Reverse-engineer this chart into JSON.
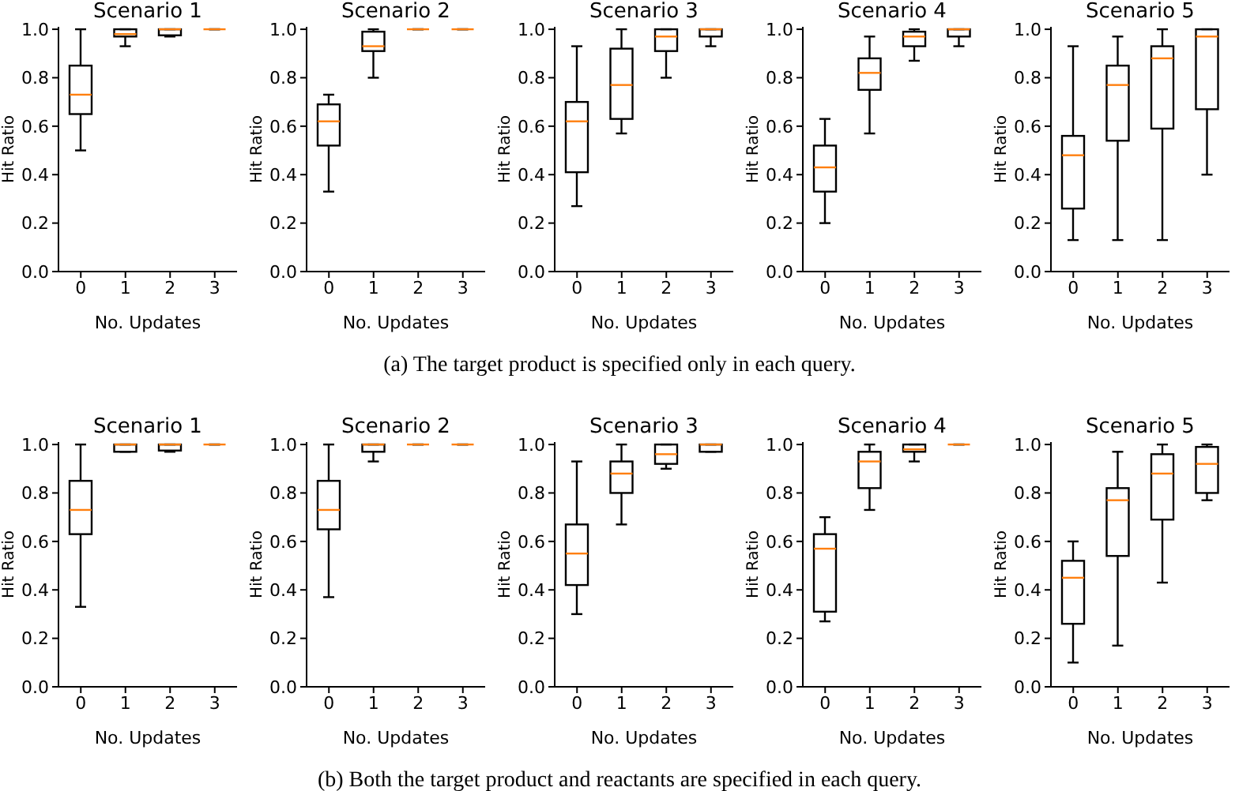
{
  "chart_data": [
    {
      "type": "box",
      "title": "Scenario 1",
      "xlabel": "No. Updates",
      "ylabel": "Hit Ratio",
      "categories": [
        "0",
        "1",
        "2",
        "3"
      ],
      "ylim": [
        0,
        1.01
      ],
      "yticks": [
        {
          "value": 0,
          "label": "0.0"
        },
        {
          "value": 0.2,
          "label": "0.2"
        },
        {
          "value": 0.4,
          "label": "0.4"
        },
        {
          "value": 0.6,
          "label": "0.6"
        },
        {
          "value": 0.8,
          "label": "0.8"
        },
        {
          "value": 1,
          "label": "1.0"
        }
      ],
      "color": "#000000",
      "annotations": [
        "(a) The target product is specified only in each query."
      ],
      "boxes": [
        {
          "low": 0.5,
          "q1": 0.65,
          "median": 0.73,
          "q3": 0.85,
          "high": 1.0
        },
        {
          "low": 0.93,
          "q1": 0.97,
          "median": 0.98,
          "q3": 1.0,
          "high": 1.0
        },
        {
          "low": 0.97,
          "q1": 0.975,
          "median": 1.0,
          "q3": 1.0,
          "high": 1.0
        },
        {
          "low": 1.0,
          "q1": 1.0,
          "median": 1.0,
          "q3": 1.0,
          "high": 1.0
        }
      ]
    },
    {
      "type": "box",
      "title": "Scenario 2",
      "xlabel": "No. Updates",
      "ylabel": "Hit Ratio",
      "categories": [
        "0",
        "1",
        "2",
        "3"
      ],
      "ylim": [
        0,
        1.01
      ],
      "yticks": [
        {
          "value": 0,
          "label": "0.0"
        },
        {
          "value": 0.2,
          "label": "0.2"
        },
        {
          "value": 0.4,
          "label": "0.4"
        },
        {
          "value": 0.6,
          "label": "0.6"
        },
        {
          "value": 0.8,
          "label": "0.8"
        },
        {
          "value": 1,
          "label": "1.0"
        }
      ],
      "color": "#000000",
      "boxes": [
        {
          "low": 0.33,
          "q1": 0.52,
          "median": 0.62,
          "q3": 0.69,
          "high": 0.73
        },
        {
          "low": 0.8,
          "q1": 0.91,
          "median": 0.93,
          "q3": 0.99,
          "high": 1.0
        },
        {
          "low": 1.0,
          "q1": 1.0,
          "median": 1.0,
          "q3": 1.0,
          "high": 1.0
        },
        {
          "low": 1.0,
          "q1": 1.0,
          "median": 1.0,
          "q3": 1.0,
          "high": 1.0
        }
      ]
    },
    {
      "type": "box",
      "title": "Scenario 3",
      "xlabel": "No. Updates",
      "ylabel": "Hit Ratio",
      "categories": [
        "0",
        "1",
        "2",
        "3"
      ],
      "ylim": [
        0,
        1.01
      ],
      "yticks": [
        {
          "value": 0,
          "label": "0.0"
        },
        {
          "value": 0.2,
          "label": "0.2"
        },
        {
          "value": 0.4,
          "label": "0.4"
        },
        {
          "value": 0.6,
          "label": "0.6"
        },
        {
          "value": 0.8,
          "label": "0.8"
        },
        {
          "value": 1,
          "label": "1.0"
        }
      ],
      "color": "#000000",
      "boxes": [
        {
          "low": 0.27,
          "q1": 0.41,
          "median": 0.62,
          "q3": 0.7,
          "high": 0.93
        },
        {
          "low": 0.57,
          "q1": 0.63,
          "median": 0.77,
          "q3": 0.92,
          "high": 1.0
        },
        {
          "low": 0.8,
          "q1": 0.91,
          "median": 0.97,
          "q3": 1.0,
          "high": 1.0
        },
        {
          "low": 0.93,
          "q1": 0.97,
          "median": 1.0,
          "q3": 1.0,
          "high": 1.0
        }
      ]
    },
    {
      "type": "box",
      "title": "Scenario 4",
      "xlabel": "No. Updates",
      "ylabel": "Hit Ratio",
      "categories": [
        "0",
        "1",
        "2",
        "3"
      ],
      "ylim": [
        0,
        1.01
      ],
      "yticks": [
        {
          "value": 0,
          "label": "0.0"
        },
        {
          "value": 0.2,
          "label": "0.2"
        },
        {
          "value": 0.4,
          "label": "0.4"
        },
        {
          "value": 0.6,
          "label": "0.6"
        },
        {
          "value": 0.8,
          "label": "0.8"
        },
        {
          "value": 1,
          "label": "1.0"
        }
      ],
      "color": "#000000",
      "boxes": [
        {
          "low": 0.2,
          "q1": 0.33,
          "median": 0.43,
          "q3": 0.52,
          "high": 0.63
        },
        {
          "low": 0.57,
          "q1": 0.75,
          "median": 0.82,
          "q3": 0.88,
          "high": 0.97
        },
        {
          "low": 0.87,
          "q1": 0.93,
          "median": 0.97,
          "q3": 0.99,
          "high": 1.0
        },
        {
          "low": 0.93,
          "q1": 0.97,
          "median": 1.0,
          "q3": 1.0,
          "high": 1.0
        }
      ]
    },
    {
      "type": "box",
      "title": "Scenario 5",
      "xlabel": "No. Updates",
      "ylabel": "Hit Ratio",
      "categories": [
        "0",
        "1",
        "2",
        "3"
      ],
      "ylim": [
        0,
        1.01
      ],
      "yticks": [
        {
          "value": 0,
          "label": "0.0"
        },
        {
          "value": 0.2,
          "label": "0.2"
        },
        {
          "value": 0.4,
          "label": "0.4"
        },
        {
          "value": 0.6,
          "label": "0.6"
        },
        {
          "value": 0.8,
          "label": "0.8"
        },
        {
          "value": 1,
          "label": "1.0"
        }
      ],
      "color": "#000000",
      "boxes": [
        {
          "low": 0.13,
          "q1": 0.26,
          "median": 0.48,
          "q3": 0.56,
          "high": 0.93
        },
        {
          "low": 0.13,
          "q1": 0.54,
          "median": 0.77,
          "q3": 0.85,
          "high": 0.97
        },
        {
          "low": 0.13,
          "q1": 0.59,
          "median": 0.88,
          "q3": 0.93,
          "high": 1.0
        },
        {
          "low": 0.4,
          "q1": 0.67,
          "median": 0.97,
          "q3": 1.0,
          "high": 1.0
        }
      ]
    },
    {
      "type": "box",
      "title": "Scenario 1",
      "xlabel": "No. Updates",
      "ylabel": "Hit Ratio",
      "categories": [
        "0",
        "1",
        "2",
        "3"
      ],
      "ylim": [
        0,
        1.01
      ],
      "yticks": [
        {
          "value": 0,
          "label": "0.0"
        },
        {
          "value": 0.2,
          "label": "0.2"
        },
        {
          "value": 0.4,
          "label": "0.4"
        },
        {
          "value": 0.6,
          "label": "0.6"
        },
        {
          "value": 0.8,
          "label": "0.8"
        },
        {
          "value": 1,
          "label": "1.0"
        }
      ],
      "color": "#000000",
      "annotations": [
        "(b) Both the target product and reactants are specified in each query."
      ],
      "boxes": [
        {
          "low": 0.33,
          "q1": 0.63,
          "median": 0.73,
          "q3": 0.85,
          "high": 1.0
        },
        {
          "low": 0.97,
          "q1": 0.97,
          "median": 1.0,
          "q3": 1.0,
          "high": 1.0
        },
        {
          "low": 0.97,
          "q1": 0.975,
          "median": 1.0,
          "q3": 1.0,
          "high": 1.0
        },
        {
          "low": 1.0,
          "q1": 1.0,
          "median": 1.0,
          "q3": 1.0,
          "high": 1.0
        }
      ]
    },
    {
      "type": "box",
      "title": "Scenario 2",
      "xlabel": "No. Updates",
      "ylabel": "Hit Ratio",
      "categories": [
        "0",
        "1",
        "2",
        "3"
      ],
      "ylim": [
        0,
        1.01
      ],
      "yticks": [
        {
          "value": 0,
          "label": "0.0"
        },
        {
          "value": 0.2,
          "label": "0.2"
        },
        {
          "value": 0.4,
          "label": "0.4"
        },
        {
          "value": 0.6,
          "label": "0.6"
        },
        {
          "value": 0.8,
          "label": "0.8"
        },
        {
          "value": 1,
          "label": "1.0"
        }
      ],
      "color": "#000000",
      "boxes": [
        {
          "low": 0.37,
          "q1": 0.65,
          "median": 0.73,
          "q3": 0.85,
          "high": 1.0
        },
        {
          "low": 0.93,
          "q1": 0.97,
          "median": 1.0,
          "q3": 1.0,
          "high": 1.0
        },
        {
          "low": 1.0,
          "q1": 1.0,
          "median": 1.0,
          "q3": 1.0,
          "high": 1.0
        },
        {
          "low": 1.0,
          "q1": 1.0,
          "median": 1.0,
          "q3": 1.0,
          "high": 1.0
        }
      ]
    },
    {
      "type": "box",
      "title": "Scenario 3",
      "xlabel": "No. Updates",
      "ylabel": "Hit Ratio",
      "categories": [
        "0",
        "1",
        "2",
        "3"
      ],
      "ylim": [
        0,
        1.01
      ],
      "yticks": [
        {
          "value": 0,
          "label": "0.0"
        },
        {
          "value": 0.2,
          "label": "0.2"
        },
        {
          "value": 0.4,
          "label": "0.4"
        },
        {
          "value": 0.6,
          "label": "0.6"
        },
        {
          "value": 0.8,
          "label": "0.8"
        },
        {
          "value": 1,
          "label": "1.0"
        }
      ],
      "color": "#000000",
      "boxes": [
        {
          "low": 0.3,
          "q1": 0.42,
          "median": 0.55,
          "q3": 0.67,
          "high": 0.93
        },
        {
          "low": 0.67,
          "q1": 0.8,
          "median": 0.88,
          "q3": 0.93,
          "high": 1.0
        },
        {
          "low": 0.9,
          "q1": 0.92,
          "median": 0.96,
          "q3": 1.0,
          "high": 1.0
        },
        {
          "low": 0.97,
          "q1": 0.97,
          "median": 1.0,
          "q3": 1.0,
          "high": 1.0
        }
      ]
    },
    {
      "type": "box",
      "title": "Scenario 4",
      "xlabel": "No. Updates",
      "ylabel": "Hit Ratio",
      "categories": [
        "0",
        "1",
        "2",
        "3"
      ],
      "ylim": [
        0,
        1.01
      ],
      "yticks": [
        {
          "value": 0,
          "label": "0.0"
        },
        {
          "value": 0.2,
          "label": "0.2"
        },
        {
          "value": 0.4,
          "label": "0.4"
        },
        {
          "value": 0.6,
          "label": "0.6"
        },
        {
          "value": 0.8,
          "label": "0.8"
        },
        {
          "value": 1,
          "label": "1.0"
        }
      ],
      "color": "#000000",
      "boxes": [
        {
          "low": 0.27,
          "q1": 0.31,
          "median": 0.57,
          "q3": 0.63,
          "high": 0.7
        },
        {
          "low": 0.73,
          "q1": 0.82,
          "median": 0.93,
          "q3": 0.97,
          "high": 1.0
        },
        {
          "low": 0.93,
          "q1": 0.97,
          "median": 0.98,
          "q3": 1.0,
          "high": 1.0
        },
        {
          "low": 1.0,
          "q1": 1.0,
          "median": 1.0,
          "q3": 1.0,
          "high": 1.0
        }
      ]
    },
    {
      "type": "box",
      "title": "Scenario 5",
      "xlabel": "No. Updates",
      "ylabel": "Hit Ratio",
      "categories": [
        "0",
        "1",
        "2",
        "3"
      ],
      "ylim": [
        0,
        1.01
      ],
      "yticks": [
        {
          "value": 0,
          "label": "0.0"
        },
        {
          "value": 0.2,
          "label": "0.2"
        },
        {
          "value": 0.4,
          "label": "0.4"
        },
        {
          "value": 0.6,
          "label": "0.6"
        },
        {
          "value": 0.8,
          "label": "0.8"
        },
        {
          "value": 1,
          "label": "1.0"
        }
      ],
      "color": "#000000",
      "boxes": [
        {
          "low": 0.1,
          "q1": 0.26,
          "median": 0.45,
          "q3": 0.52,
          "high": 0.6
        },
        {
          "low": 0.17,
          "q1": 0.54,
          "median": 0.77,
          "q3": 0.82,
          "high": 0.97
        },
        {
          "low": 0.43,
          "q1": 0.69,
          "median": 0.88,
          "q3": 0.96,
          "high": 1.0
        },
        {
          "low": 0.77,
          "q1": 0.8,
          "median": 0.92,
          "q3": 0.99,
          "high": 1.0
        }
      ]
    }
  ]
}
